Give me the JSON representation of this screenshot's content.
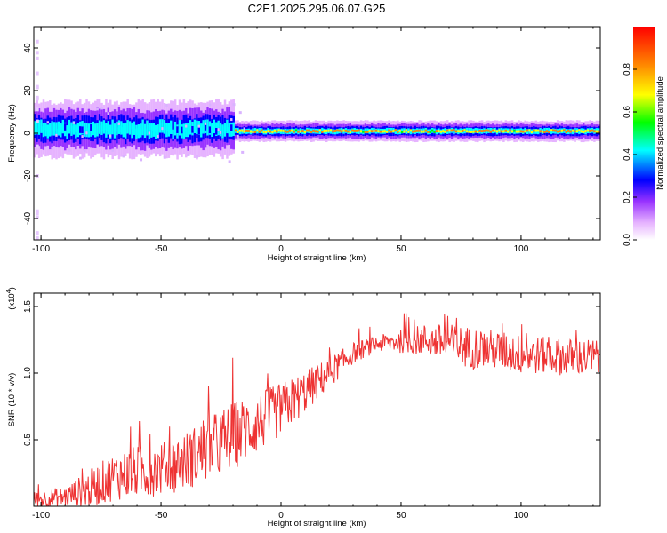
{
  "title": "C2E1.2025.295.06.07.G25",
  "chart_data": [
    {
      "type": "heatmap",
      "name": "spectrogram",
      "xlabel": "Height of straight line (km)",
      "ylabel": "Frequency (Hz)",
      "xlim": [
        -103,
        133
      ],
      "ylim": [
        -50,
        50
      ],
      "xticks": [
        -100,
        -50,
        0,
        50,
        100
      ],
      "yticks": [
        -40,
        -20,
        0,
        20,
        40
      ],
      "colorbar": {
        "label": "Normalized spectral amplitude",
        "range": [
          0,
          1
        ],
        "ticks": [
          "0.0",
          "0.2",
          "0.4",
          "0.6",
          "0.8"
        ],
        "colors": [
          "#ffffff",
          "#e6b3ff",
          "#9933ff",
          "#0000ff",
          "#00ffff",
          "#00ff00",
          "#ffff00",
          "#ff8800",
          "#ff0000"
        ]
      },
      "ridge": {
        "description_values": "dominant frequency ~1-3 Hz across all heights",
        "segments": [
          {
            "x_range": [
              -103,
              -20
            ],
            "center_hz": 2,
            "spread_hz": 8,
            "peak_amplitude": 0.55
          },
          {
            "x_range": [
              -20,
              133
            ],
            "center_hz": 1,
            "spread_hz": 3,
            "peak_amplitude": 0.95
          }
        ]
      }
    },
    {
      "type": "line",
      "name": "snr",
      "xlabel": "Height of straight line (km)",
      "ylabel": "SNR (10 * v/v)",
      "y_multiplier_label": "(x10",
      "y_multiplier_exp": "4",
      "y_multiplier_close": ")",
      "xlim": [
        -103,
        133
      ],
      "ylim": [
        0,
        1.6
      ],
      "xticks": [
        -100,
        -50,
        0,
        50,
        100
      ],
      "yticks": [
        "0.5",
        "1.0",
        "1.5"
      ],
      "yticks_values": [
        0.5,
        1.0,
        1.5
      ],
      "color": "#ee3333",
      "series": [
        {
          "name": "SNR",
          "x": [
            -103,
            -90,
            -80,
            -70,
            -60,
            -50,
            -40,
            -30,
            -20,
            -10,
            0,
            10,
            20,
            30,
            40,
            50,
            60,
            70,
            80,
            90,
            100,
            110,
            120,
            133
          ],
          "mean": [
            0.05,
            0.07,
            0.13,
            0.22,
            0.26,
            0.28,
            0.34,
            0.43,
            0.53,
            0.62,
            0.73,
            0.86,
            1.0,
            1.15,
            1.22,
            1.24,
            1.25,
            1.22,
            1.19,
            1.17,
            1.14,
            1.13,
            1.12,
            1.12
          ],
          "spread": [
            0.06,
            0.08,
            0.14,
            0.18,
            0.2,
            0.2,
            0.22,
            0.25,
            0.26,
            0.23,
            0.2,
            0.16,
            0.12,
            0.08,
            0.06,
            0.09,
            0.12,
            0.15,
            0.16,
            0.15,
            0.15,
            0.14,
            0.14,
            0.14
          ]
        }
      ]
    }
  ]
}
